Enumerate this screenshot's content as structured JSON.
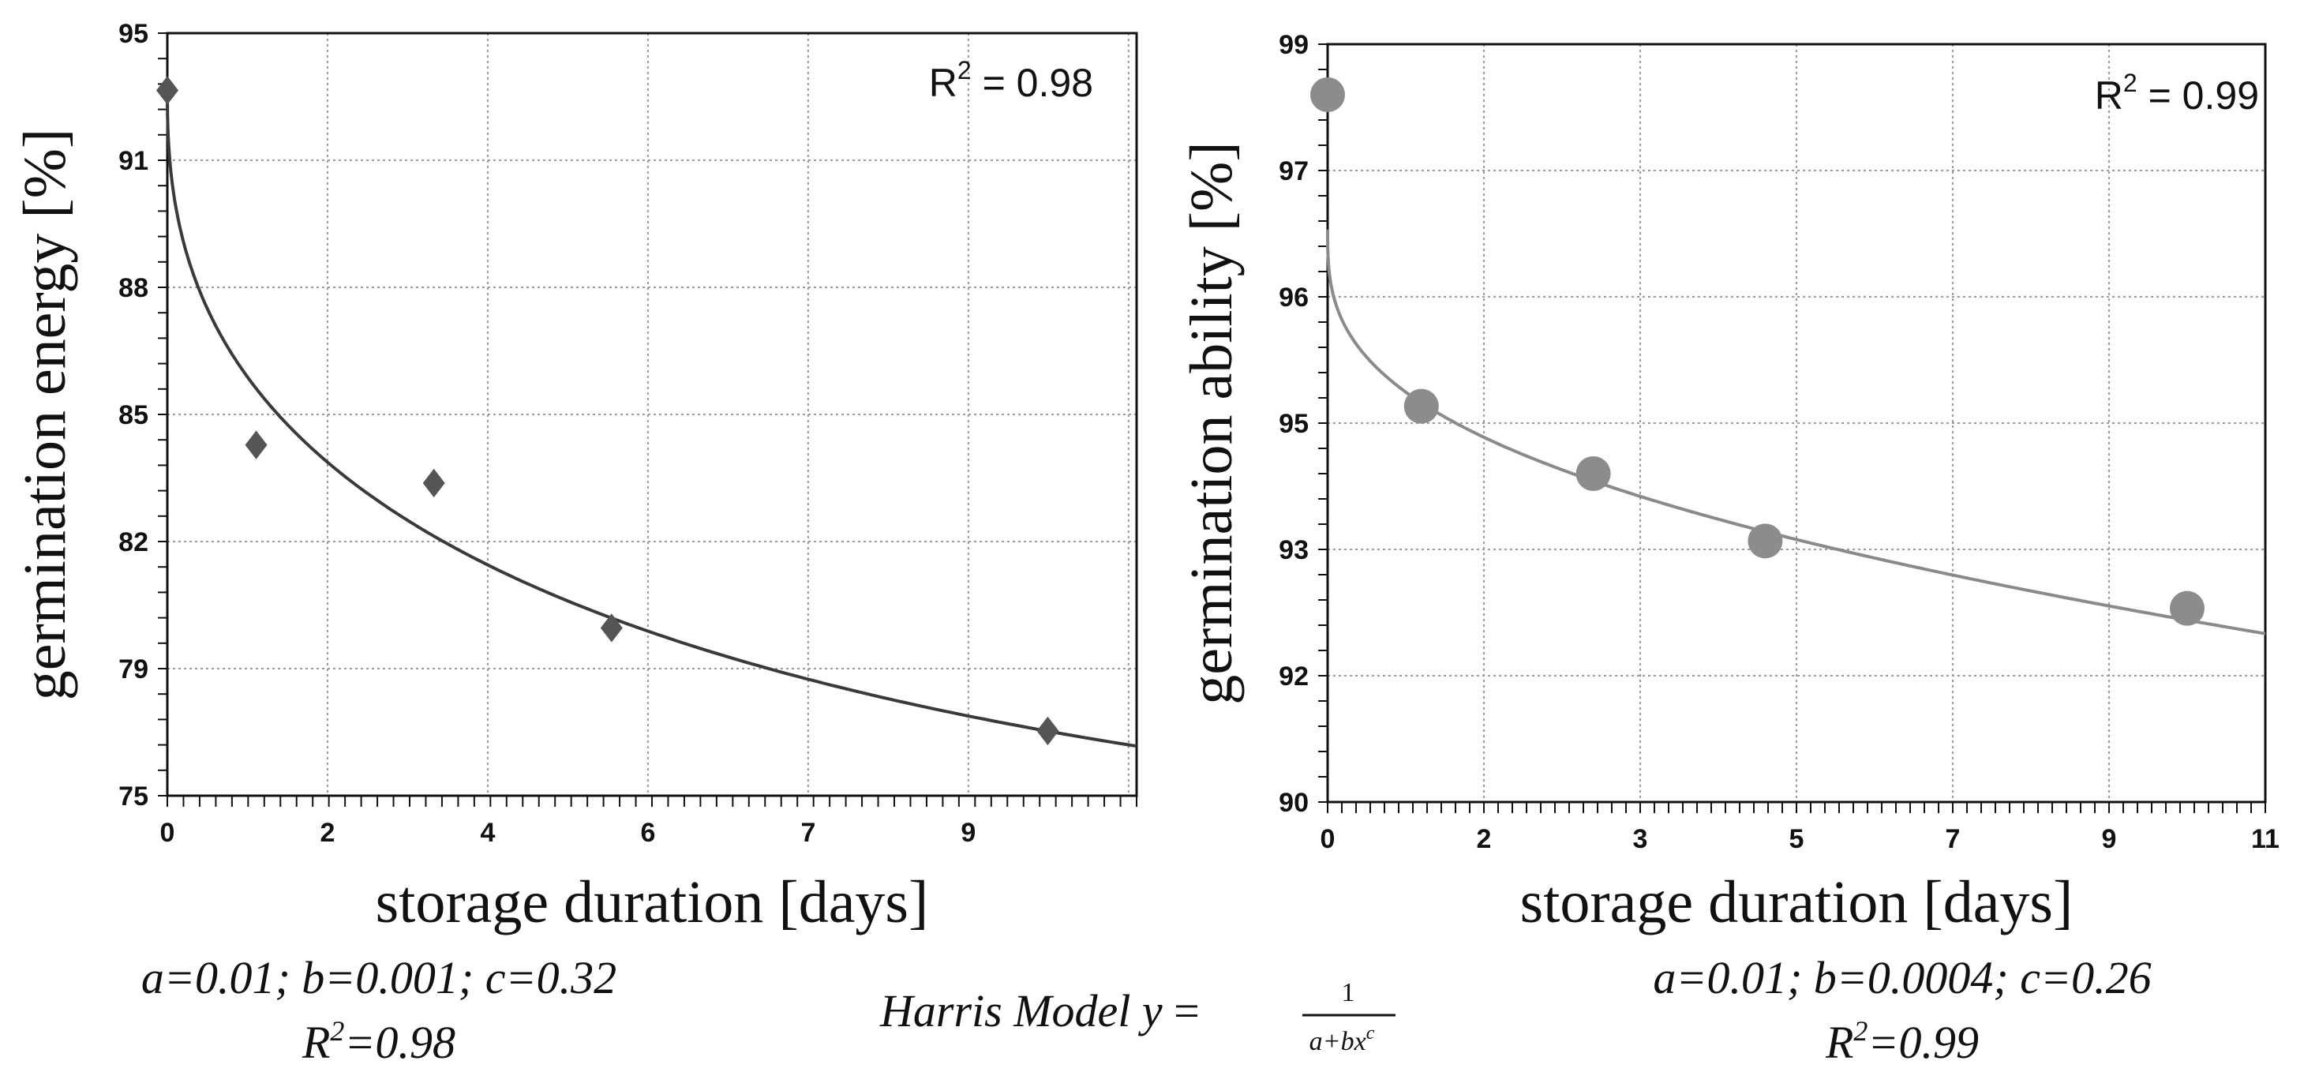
{
  "chart_data": [
    {
      "type": "scatter",
      "xlabel": "storage duration [days]",
      "ylabel": "germination energy [%]",
      "x_tick_labels": [
        "0",
        "2",
        "4",
        "6",
        "7",
        "9"
      ],
      "y_tick_labels": [
        "95",
        "91",
        "88",
        "85",
        "82",
        "79",
        "75"
      ],
      "xlim": [
        0,
        12
      ],
      "ylim": [
        75,
        95
      ],
      "grid": true,
      "r2_label": "R",
      "r2_sup": "2",
      "r2_value": " = 0.98",
      "series": [
        {
          "marker": "diamond",
          "color": "#555555",
          "points": [
            {
              "x": 0.0,
              "y": 93.5
            },
            {
              "x": 1.1,
              "y": 84.2
            },
            {
              "x": 3.3,
              "y": 83.2
            },
            {
              "x": 5.5,
              "y": 79.4
            },
            {
              "x": 10.9,
              "y": 76.7
            }
          ]
        }
      ],
      "fit": {
        "model": "harris",
        "color": "#3a3a3a",
        "y0": 93.5,
        "x1": 1.0,
        "y1": 85.5,
        "x_end": 12.0,
        "y_end": 76.3
      },
      "caption_line1": "a=0.01; b=0.001; c=0.32",
      "caption_line2_prefix": "R",
      "caption_line2_sup": "2",
      "caption_line2_suffix": "=0.98"
    },
    {
      "type": "scatter",
      "xlabel": "storage duration [days]",
      "ylabel": "germination ability [%]",
      "x_tick_labels": [
        "0",
        "2",
        "3",
        "5",
        "7",
        "9",
        "11"
      ],
      "y_tick_labels": [
        "99",
        "97",
        "96",
        "95",
        "93",
        "92",
        "90"
      ],
      "xlim": [
        0,
        12
      ],
      "ylim": [
        90,
        99
      ],
      "grid": true,
      "r2_label": "R",
      "r2_sup": "2",
      "r2_value": " = 0.99",
      "series": [
        {
          "marker": "circle",
          "color": "#8c8c8c",
          "points": [
            {
              "x": 0.0,
              "y": 98.4
            },
            {
              "x": 1.2,
              "y": 94.7
            },
            {
              "x": 3.4,
              "y": 93.9
            },
            {
              "x": 5.6,
              "y": 93.1
            },
            {
              "x": 11.0,
              "y": 92.3
            }
          ]
        }
      ],
      "fit": {
        "model": "harris",
        "color": "#8a8a8a",
        "y0": 96.8,
        "x1": 1.0,
        "y1": 94.9,
        "x_end": 12.0,
        "y_end": 92.0
      },
      "caption_line1": "a=0.01; b=0.0004; c=0.26",
      "caption_line2_prefix": "R",
      "caption_line2_sup": "2",
      "caption_line2_suffix": "=0.99"
    }
  ],
  "formula": {
    "prefix": "Harris Model ",
    "var": "y",
    "equals": " = ",
    "numerator": "1",
    "denominator": "a+bx",
    "denominator_exp": "c"
  }
}
